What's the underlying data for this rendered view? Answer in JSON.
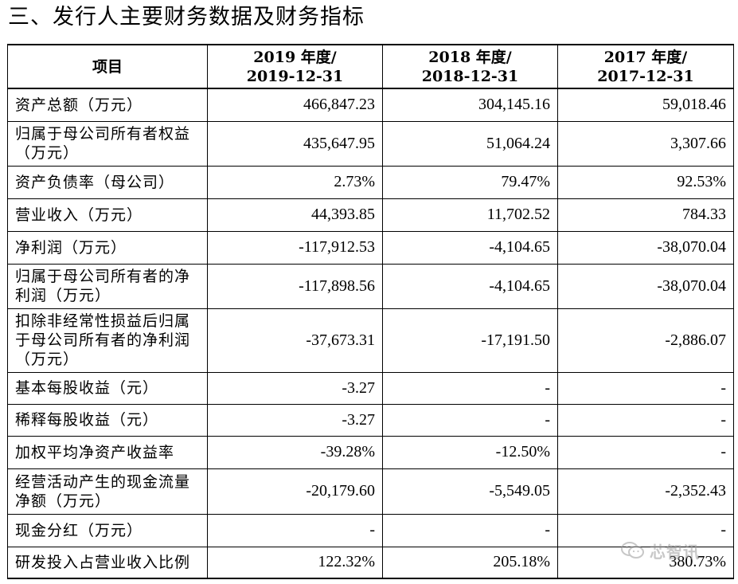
{
  "section_title": "三、发行人主要财务数据及财务指标",
  "table": {
    "header": {
      "item": "项目",
      "columns": [
        {
          "line1": "2019 年度/",
          "line2": "2019-12-31"
        },
        {
          "line1": "2018 年度/",
          "line2": "2018-12-31"
        },
        {
          "line1": "2017 年度/",
          "line2": "2017-12-31"
        }
      ]
    },
    "rows": [
      {
        "label": "资产总额（万元）",
        "values": [
          "466,847.23",
          "304,145.16",
          "59,018.46"
        ]
      },
      {
        "label": "归属于母公司所有者权益（万元）",
        "values": [
          "435,647.95",
          "51,064.24",
          "3,307.66"
        ]
      },
      {
        "label": "资产负债率（母公司）",
        "values": [
          "2.73%",
          "79.47%",
          "92.53%"
        ]
      },
      {
        "label": "营业收入（万元）",
        "values": [
          "44,393.85",
          "11,702.52",
          "784.33"
        ]
      },
      {
        "label": "净利润（万元）",
        "values": [
          "-117,912.53",
          "-4,104.65",
          "-38,070.04"
        ]
      },
      {
        "label": "归属于母公司所有者的净利润（万元）",
        "values": [
          "-117,898.56",
          "-4,104.65",
          "-38,070.04"
        ]
      },
      {
        "label": "扣除非经常性损益后归属于母公司所有者的净利润（万元）",
        "values": [
          "-37,673.31",
          "-17,191.50",
          "-2,886.07"
        ]
      },
      {
        "label": "基本每股收益（元）",
        "values": [
          "-3.27",
          "-",
          "-"
        ]
      },
      {
        "label": "稀释每股收益（元）",
        "values": [
          "-3.27",
          "-",
          "-"
        ]
      },
      {
        "label": "加权平均净资产收益率",
        "values": [
          "-39.28%",
          "-12.50%",
          "-"
        ]
      },
      {
        "label": "经营活动产生的现金流量净额（万元）",
        "values": [
          "-20,179.60",
          "-5,549.05",
          "-2,352.43"
        ]
      },
      {
        "label": "现金分红（万元）",
        "values": [
          "-",
          "-",
          "-"
        ]
      },
      {
        "label": "研发投入占营业收入比例",
        "values": [
          "122.32%",
          "205.18%",
          "380.73%"
        ]
      }
    ]
  },
  "watermark": {
    "icon": "wechat-icon",
    "text": "芯智讯"
  }
}
